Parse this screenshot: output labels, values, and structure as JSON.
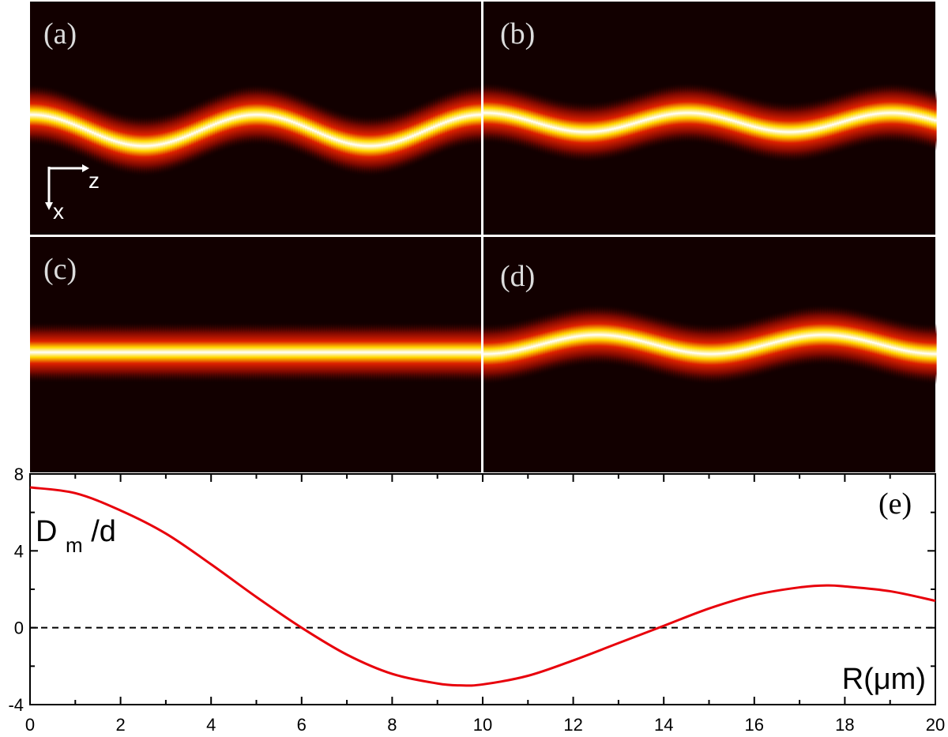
{
  "panels": [
    {
      "id": "a",
      "label": "(a)",
      "amplitude": 0.9,
      "phase": 0.0,
      "wavelength_frac": 0.5
    },
    {
      "id": "b",
      "label": "(b)",
      "amplitude": 0.55,
      "phase": 0.0,
      "wavelength_frac": 0.45
    },
    {
      "id": "c",
      "label": "(c)",
      "amplitude": 0.0,
      "phase": 0.0,
      "wavelength_frac": 0.5
    },
    {
      "id": "d",
      "label": "(d)",
      "amplitude": 0.55,
      "phase": 3.14159,
      "wavelength_frac": 0.5
    }
  ],
  "axes_indicator": {
    "horizontal": "z",
    "vertical": "x"
  },
  "colors": {
    "background": "#120000",
    "beam_core": "#ffffff",
    "beam_mid": "#ffe000",
    "beam_edge": "#cc1000",
    "curve": "#e8000b",
    "zero_line": "#000000",
    "divider": "#ffffff"
  },
  "chart_data": {
    "type": "line",
    "panel_label": "(e)",
    "ylabel_main": "D",
    "ylabel_sub": "m",
    "ylabel_tail": "/d",
    "xlabel": "R(μm)",
    "xlim": [
      0,
      20
    ],
    "ylim": [
      -4,
      8
    ],
    "xticks": [
      0,
      2,
      4,
      6,
      8,
      10,
      12,
      14,
      16,
      18,
      20
    ],
    "yticks": [
      -4,
      0,
      4,
      8
    ],
    "reference_line_y": 0,
    "series": [
      {
        "x": [
          0,
          1,
          2,
          3,
          4,
          5,
          6,
          7,
          8,
          9,
          9.5,
          10,
          11,
          12,
          13,
          14,
          15,
          16,
          17,
          17.6,
          18,
          19,
          20
        ],
        "y": [
          7.3,
          7.0,
          6.1,
          4.9,
          3.3,
          1.6,
          0.0,
          -1.4,
          -2.4,
          -2.9,
          -3.0,
          -2.95,
          -2.5,
          -1.7,
          -0.8,
          0.1,
          1.0,
          1.7,
          2.1,
          2.2,
          2.15,
          1.9,
          1.4
        ]
      }
    ]
  }
}
